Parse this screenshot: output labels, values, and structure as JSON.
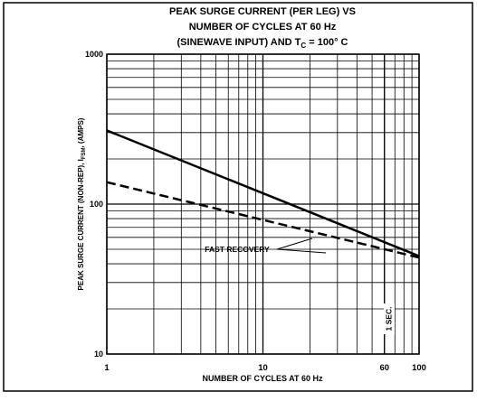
{
  "chart_data": {
    "type": "line",
    "title_lines": [
      "PEAK SURGE CURRENT (PER LEG) VS",
      "NUMBER OF CYCLES AT 60 Hz"
    ],
    "title_last": {
      "text": "(SINEWAVE INPUT) AND T",
      "sub": "C",
      "rest": " = 100° C"
    },
    "x_label": "NUMBER OF CYCLES AT 60 Hz",
    "y_label": {
      "text": "PEAK SURGE CURRENT (NON-REP), I",
      "sub": "FSM",
      "rest": ", (AMPS)"
    },
    "x": [
      1,
      100
    ],
    "series": [
      {
        "values": [
          310,
          45
        ],
        "color": "#000000",
        "dash": false
      },
      {
        "values": [
          140,
          44
        ],
        "color": "#000000",
        "dash": true
      }
    ],
    "annotations": [
      "FAST RECOVERY",
      "1 SEC."
    ],
    "xlog": true,
    "ylog": true,
    "xlim": [
      1,
      100
    ],
    "ylim": [
      10,
      1000
    ],
    "xticks": [
      1,
      10,
      60,
      100
    ],
    "yticks": [
      10,
      100,
      1000
    ],
    "grid": true
  }
}
